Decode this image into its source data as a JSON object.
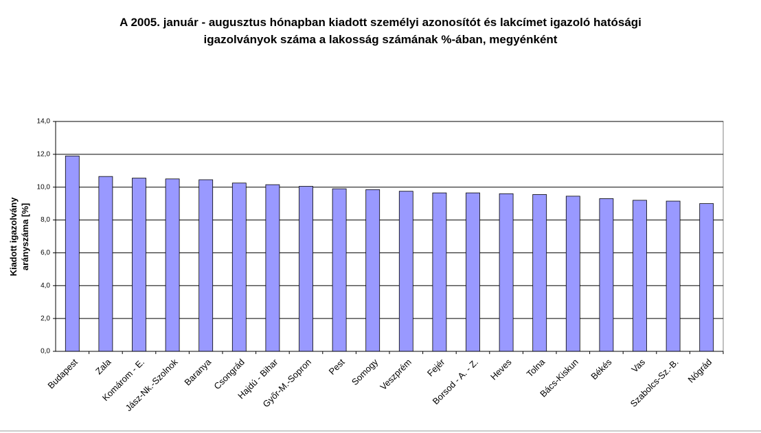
{
  "chart_data": {
    "type": "bar",
    "title": [
      "A 2005. január - augusztus hónapban  kiadott személyi azonosítót és lakcímet igazoló hatósági",
      "igazolványok száma a lakosság  számának %-ában, megyénként"
    ],
    "y_label": [
      "Kiadott igazolvány",
      "arányszáma [%]"
    ],
    "categories": [
      "Budapest",
      "Zala",
      "Komárom - E.",
      "Jász-Nk.-Szolnok",
      "Baranya",
      "Csongrád",
      "Hajdú - Bihar",
      "Győr-M.-Sopron",
      "Pest",
      "Somogy",
      "Veszprém",
      "Fejér",
      "Borsod - A. - Z.",
      "Heves",
      "Tolna",
      "Bács-Kiskun",
      "Békés",
      "Vas",
      "Szabolcs-Sz.-B.",
      "Nógrád"
    ],
    "values": [
      11.9,
      10.65,
      10.55,
      10.5,
      10.45,
      10.25,
      10.15,
      10.05,
      9.9,
      9.85,
      9.75,
      9.65,
      9.65,
      9.6,
      9.55,
      9.45,
      9.3,
      9.2,
      9.15,
      9.0
    ],
    "color": "#9999ff",
    "ylim": [
      0,
      14
    ],
    "yticks": [
      {
        "value": 0,
        "label": "0,0"
      },
      {
        "value": 2,
        "label": "2,0"
      },
      {
        "value": 4,
        "label": "4,0"
      },
      {
        "value": 6,
        "label": "6,0"
      },
      {
        "value": 8,
        "label": "8,0"
      },
      {
        "value": 10,
        "label": "10,0"
      },
      {
        "value": 12,
        "label": "12,0"
      },
      {
        "value": 14,
        "label": "14,0"
      }
    ],
    "grid": true
  }
}
